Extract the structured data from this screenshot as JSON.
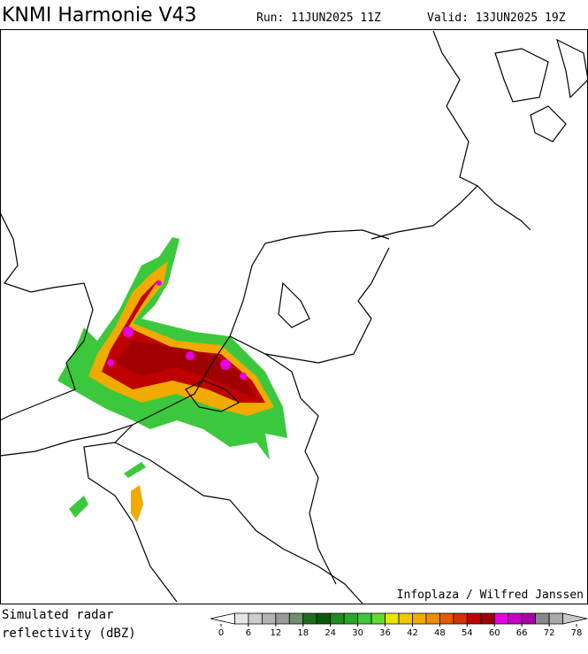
{
  "header": {
    "title": "KNMI Harmonie V43",
    "run": "Run: 11JUN2025 11Z",
    "valid": "Valid: 13JUN2025 19Z"
  },
  "map": {
    "credit": "Infoplaza / Wilfred Janssen"
  },
  "legend": {
    "label_lines": [
      "Simulated radar",
      "reflectivity (dBZ)"
    ],
    "range": [
      0,
      78
    ],
    "step": 3,
    "ticks": [
      0,
      6,
      12,
      18,
      24,
      30,
      36,
      42,
      48,
      54,
      60,
      66,
      72,
      78
    ],
    "colors": [
      "#ffffff",
      "#e6e6e6",
      "#cccccc",
      "#b4b4b4",
      "#9a9a9a",
      "#6e8e6e",
      "#1e6e1e",
      "#0a5a0a",
      "#1e8c1e",
      "#28aa28",
      "#3cc83c",
      "#64dc32",
      "#e6e600",
      "#f0c800",
      "#f0aa00",
      "#f08c00",
      "#e65a00",
      "#d23200",
      "#be0000",
      "#a00000",
      "#e600e6",
      "#c800c8",
      "#aa00aa",
      "#888888",
      "#aaaaaa",
      "#c8c8c8"
    ]
  }
}
